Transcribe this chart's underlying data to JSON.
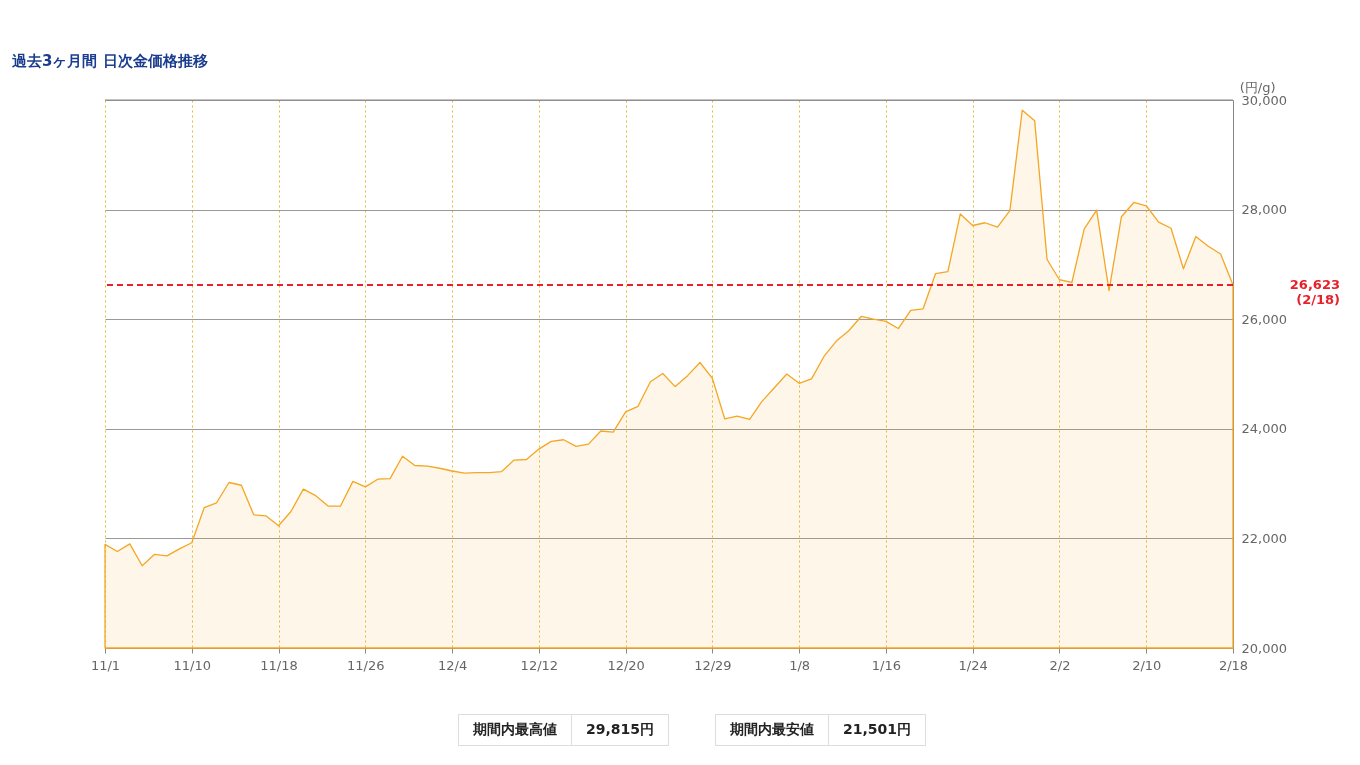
{
  "chart_data": {
    "type": "area",
    "title": "過去3ヶ月間 日次金価格推移",
    "ylabel": "(円/g)",
    "categories": [
      "11/1",
      null,
      null,
      null,
      null,
      null,
      null,
      "11/10",
      null,
      null,
      null,
      null,
      null,
      null,
      "11/18",
      null,
      null,
      null,
      null,
      null,
      null,
      "11/26",
      null,
      null,
      null,
      null,
      null,
      null,
      "12/4",
      null,
      null,
      null,
      null,
      null,
      null,
      "12/12",
      null,
      null,
      null,
      null,
      null,
      null,
      "12/20",
      null,
      null,
      null,
      null,
      null,
      null,
      "12/29",
      null,
      null,
      null,
      null,
      null,
      null,
      "1/8",
      null,
      null,
      null,
      null,
      null,
      null,
      "1/16",
      null,
      null,
      null,
      null,
      null,
      null,
      "1/24",
      null,
      null,
      null,
      null,
      null,
      null,
      "2/2",
      null,
      null,
      null,
      null,
      null,
      null,
      "2/10",
      null,
      null,
      null,
      null,
      null,
      null,
      "2/18"
    ],
    "series": [
      {
        "color": "#f5a623",
        "values": [
          21890,
          21760,
          21900,
          21501,
          21710,
          21680,
          21810,
          21920,
          22560,
          22650,
          23020,
          22970,
          22430,
          22410,
          22230,
          22490,
          22900,
          22780,
          22590,
          22590,
          23040,
          22940,
          23080,
          23090,
          23500,
          23330,
          23320,
          23280,
          23230,
          23190,
          23200,
          23200,
          23220,
          23430,
          23440,
          23630,
          23770,
          23800,
          23680,
          23720,
          23960,
          23940,
          24310,
          24410,
          24860,
          25010,
          24770,
          24970,
          25210,
          24920,
          24180,
          24230,
          24170,
          24500,
          24750,
          25000,
          24830,
          24910,
          25320,
          25600,
          25790,
          26050,
          26000,
          25960,
          25830,
          26160,
          26190,
          26830,
          26870,
          27920,
          27710,
          27760,
          27680,
          27980,
          29815,
          29620,
          27090,
          26720,
          26670,
          27650,
          27990,
          26520,
          27870,
          28130,
          28070,
          27770,
          27660,
          26920,
          27510,
          27330,
          27190,
          26623
        ]
      }
    ],
    "ylim": [
      20000,
      30000
    ],
    "yticks": [
      {
        "value": 20000,
        "label": "20,000"
      },
      {
        "value": 22000,
        "label": "22,000"
      },
      {
        "value": 24000,
        "label": "24,000"
      },
      {
        "value": 26000,
        "label": "26,000"
      },
      {
        "value": 28000,
        "label": "28,000"
      },
      {
        "value": 30000,
        "label": "30,000"
      }
    ],
    "grid": true,
    "ref_lines": [
      {
        "axis": "y",
        "value": 26623,
        "label": "26,623\n(2/18)",
        "color": "#e8202a",
        "line_style": "dashed"
      }
    ],
    "annotations": [
      "期間内最高値",
      "29,815円",
      "期間内最安値",
      "21,501円"
    ]
  }
}
